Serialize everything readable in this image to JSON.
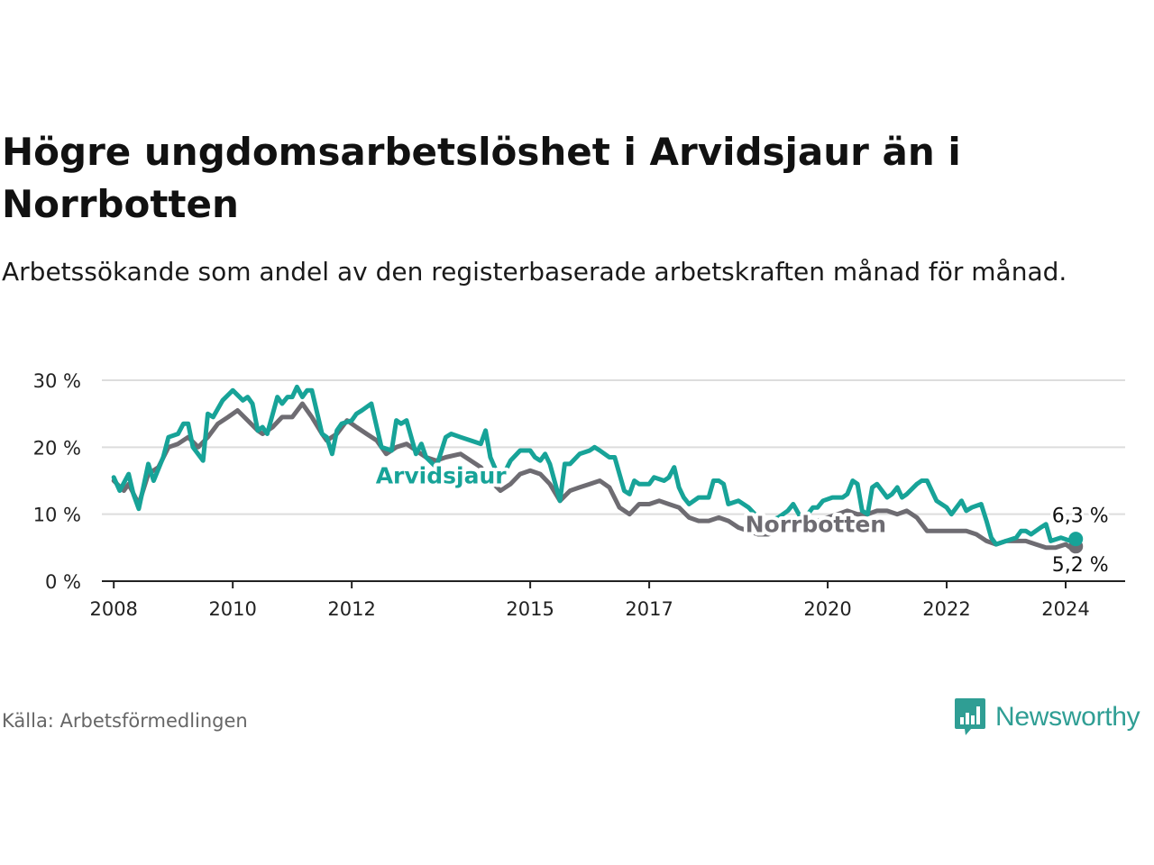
{
  "title": "Högre ungdomsarbetslöshet i Arvidsjaur än i Norrbotten",
  "subtitle": "Arbetssökande som andel av den registerbaserade arbetskraften månad för månad.",
  "source": "Källa: Arbetsförmedlingen",
  "brand": {
    "name": "Newsworthy",
    "icon": "newsworthy-logo-icon"
  },
  "colors": {
    "arvidsjaur": "#17a398",
    "norrbotten": "#6e6c72",
    "grid": "#dddddd",
    "axis": "#222222"
  },
  "chart_data": {
    "type": "line",
    "ylim": [
      0,
      30
    ],
    "xlim": [
      2007.8,
      2025.0
    ],
    "y_ticks": [
      0,
      10,
      20,
      30
    ],
    "y_tick_labels": [
      "0 %",
      "10 %",
      "20 %",
      "30 %"
    ],
    "x_ticks": [
      2008,
      2010,
      2012,
      2015,
      2017,
      2020,
      2022,
      2024
    ],
    "x_tick_labels": [
      "2008",
      "2010",
      "2012",
      "2015",
      "2017",
      "2020",
      "2022",
      "2024"
    ],
    "grid": true,
    "series": [
      {
        "name": "Arvidsjaur",
        "label": "Arvidsjaur",
        "color_key": "arvidsjaur",
        "end_label": "6,3 %",
        "points": [
          [
            2008.0,
            15.5
          ],
          [
            2008.1,
            13.5
          ],
          [
            2008.25,
            16.0
          ],
          [
            2008.33,
            13.0
          ],
          [
            2008.42,
            10.8
          ],
          [
            2008.58,
            17.5
          ],
          [
            2008.67,
            15.0
          ],
          [
            2008.83,
            18.5
          ],
          [
            2008.92,
            21.5
          ],
          [
            2009.08,
            22.0
          ],
          [
            2009.17,
            23.5
          ],
          [
            2009.25,
            23.5
          ],
          [
            2009.33,
            20.0
          ],
          [
            2009.5,
            18.0
          ],
          [
            2009.58,
            25.0
          ],
          [
            2009.67,
            24.5
          ],
          [
            2009.83,
            27.0
          ],
          [
            2010.0,
            28.5
          ],
          [
            2010.17,
            27.0
          ],
          [
            2010.25,
            27.5
          ],
          [
            2010.33,
            26.5
          ],
          [
            2010.42,
            22.5
          ],
          [
            2010.5,
            23.0
          ],
          [
            2010.58,
            22.0
          ],
          [
            2010.75,
            27.5
          ],
          [
            2010.83,
            26.5
          ],
          [
            2010.92,
            27.5
          ],
          [
            2011.0,
            27.5
          ],
          [
            2011.08,
            29.0
          ],
          [
            2011.17,
            27.5
          ],
          [
            2011.25,
            28.5
          ],
          [
            2011.33,
            28.5
          ],
          [
            2011.5,
            22.0
          ],
          [
            2011.58,
            21.5
          ],
          [
            2011.67,
            19.0
          ],
          [
            2011.75,
            22.5
          ],
          [
            2011.83,
            23.5
          ],
          [
            2012.0,
            24.0
          ],
          [
            2012.08,
            25.0
          ],
          [
            2012.17,
            25.5
          ],
          [
            2012.33,
            26.5
          ],
          [
            2012.42,
            23.0
          ],
          [
            2012.5,
            20.0
          ],
          [
            2012.67,
            19.5
          ],
          [
            2012.75,
            24.0
          ],
          [
            2012.83,
            23.5
          ],
          [
            2012.92,
            24.0
          ],
          [
            2013.08,
            19.0
          ],
          [
            2013.17,
            20.5
          ],
          [
            2013.25,
            18.5
          ],
          [
            2013.42,
            17.0
          ],
          [
            2013.58,
            21.5
          ],
          [
            2013.67,
            22.0
          ],
          [
            2013.83,
            21.5
          ],
          [
            2014.0,
            21.0
          ],
          [
            2014.17,
            20.5
          ],
          [
            2014.25,
            22.5
          ],
          [
            2014.33,
            18.5
          ],
          [
            2014.5,
            15.0
          ],
          [
            2014.67,
            18.0
          ],
          [
            2014.83,
            19.5
          ],
          [
            2015.0,
            19.5
          ],
          [
            2015.08,
            18.5
          ],
          [
            2015.17,
            18.0
          ],
          [
            2015.25,
            19.0
          ],
          [
            2015.33,
            17.5
          ],
          [
            2015.5,
            12.0
          ],
          [
            2015.58,
            17.5
          ],
          [
            2015.67,
            17.5
          ],
          [
            2015.83,
            19.0
          ],
          [
            2016.0,
            19.5
          ],
          [
            2016.08,
            20.0
          ],
          [
            2016.17,
            19.5
          ],
          [
            2016.33,
            18.5
          ],
          [
            2016.42,
            18.5
          ],
          [
            2016.5,
            16.0
          ],
          [
            2016.58,
            13.5
          ],
          [
            2016.67,
            13.0
          ],
          [
            2016.75,
            15.0
          ],
          [
            2016.83,
            14.5
          ],
          [
            2017.0,
            14.5
          ],
          [
            2017.08,
            15.5
          ],
          [
            2017.25,
            15.0
          ],
          [
            2017.33,
            15.5
          ],
          [
            2017.42,
            17.0
          ],
          [
            2017.5,
            14.0
          ],
          [
            2017.58,
            12.5
          ],
          [
            2017.67,
            11.5
          ],
          [
            2017.83,
            12.5
          ],
          [
            2018.0,
            12.5
          ],
          [
            2018.08,
            15.0
          ],
          [
            2018.17,
            15.0
          ],
          [
            2018.25,
            14.5
          ],
          [
            2018.33,
            11.5
          ],
          [
            2018.5,
            12.0
          ],
          [
            2018.67,
            11.0
          ],
          [
            2018.83,
            9.5
          ],
          [
            2019.0,
            9.0
          ],
          [
            2019.17,
            9.5
          ],
          [
            2019.33,
            10.5
          ],
          [
            2019.42,
            11.5
          ],
          [
            2019.58,
            9.0
          ],
          [
            2019.75,
            11.0
          ],
          [
            2019.83,
            11.0
          ],
          [
            2019.92,
            12.0
          ],
          [
            2020.08,
            12.5
          ],
          [
            2020.17,
            12.5
          ],
          [
            2020.25,
            12.5
          ],
          [
            2020.33,
            13.0
          ],
          [
            2020.42,
            15.0
          ],
          [
            2020.5,
            14.5
          ],
          [
            2020.58,
            10.5
          ],
          [
            2020.67,
            10.0
          ],
          [
            2020.75,
            14.0
          ],
          [
            2020.83,
            14.5
          ],
          [
            2021.0,
            12.5
          ],
          [
            2021.08,
            13.0
          ],
          [
            2021.17,
            14.0
          ],
          [
            2021.25,
            12.5
          ],
          [
            2021.33,
            13.0
          ],
          [
            2021.5,
            14.5
          ],
          [
            2021.58,
            15.0
          ],
          [
            2021.67,
            15.0
          ],
          [
            2021.83,
            12.0
          ],
          [
            2022.0,
            11.0
          ],
          [
            2022.08,
            10.0
          ],
          [
            2022.25,
            12.0
          ],
          [
            2022.33,
            10.5
          ],
          [
            2022.42,
            11.0
          ],
          [
            2022.58,
            11.5
          ],
          [
            2022.67,
            9.0
          ],
          [
            2022.75,
            6.5
          ],
          [
            2022.83,
            5.5
          ],
          [
            2023.0,
            6.0
          ],
          [
            2023.17,
            6.5
          ],
          [
            2023.25,
            7.5
          ],
          [
            2023.33,
            7.5
          ],
          [
            2023.42,
            7.0
          ],
          [
            2023.58,
            8.0
          ],
          [
            2023.67,
            8.5
          ],
          [
            2023.75,
            6.0
          ],
          [
            2023.92,
            6.5
          ],
          [
            2024.08,
            6.0
          ],
          [
            2024.17,
            6.3
          ]
        ]
      },
      {
        "name": "Norrbotten",
        "label": "Norrbotten",
        "color_key": "norrbotten",
        "end_label": "5,2 %",
        "points": [
          [
            2008.0,
            15.0
          ],
          [
            2008.17,
            13.5
          ],
          [
            2008.25,
            14.5
          ],
          [
            2008.42,
            11.5
          ],
          [
            2008.58,
            16.0
          ],
          [
            2008.75,
            17.0
          ],
          [
            2008.92,
            20.0
          ],
          [
            2009.08,
            20.5
          ],
          [
            2009.25,
            21.5
          ],
          [
            2009.42,
            20.0
          ],
          [
            2009.58,
            21.5
          ],
          [
            2009.75,
            23.5
          ],
          [
            2009.92,
            24.5
          ],
          [
            2010.08,
            25.5
          ],
          [
            2010.25,
            24.0
          ],
          [
            2010.42,
            22.5
          ],
          [
            2010.5,
            22.0
          ],
          [
            2010.67,
            23.0
          ],
          [
            2010.83,
            24.5
          ],
          [
            2011.0,
            24.5
          ],
          [
            2011.17,
            26.5
          ],
          [
            2011.33,
            24.5
          ],
          [
            2011.5,
            22.0
          ],
          [
            2011.58,
            21.0
          ],
          [
            2011.75,
            22.0
          ],
          [
            2011.92,
            24.0
          ],
          [
            2012.08,
            23.0
          ],
          [
            2012.25,
            22.0
          ],
          [
            2012.42,
            21.0
          ],
          [
            2012.58,
            19.0
          ],
          [
            2012.75,
            20.0
          ],
          [
            2012.92,
            20.5
          ],
          [
            2013.08,
            19.5
          ],
          [
            2013.25,
            18.5
          ],
          [
            2013.42,
            18.0
          ],
          [
            2013.58,
            18.5
          ],
          [
            2013.83,
            19.0
          ],
          [
            2014.0,
            18.0
          ],
          [
            2014.17,
            17.0
          ],
          [
            2014.33,
            15.0
          ],
          [
            2014.5,
            13.5
          ],
          [
            2014.67,
            14.5
          ],
          [
            2014.83,
            16.0
          ],
          [
            2015.0,
            16.5
          ],
          [
            2015.17,
            16.0
          ],
          [
            2015.33,
            14.5
          ],
          [
            2015.5,
            12.0
          ],
          [
            2015.67,
            13.5
          ],
          [
            2015.83,
            14.0
          ],
          [
            2016.0,
            14.5
          ],
          [
            2016.17,
            15.0
          ],
          [
            2016.33,
            14.0
          ],
          [
            2016.5,
            11.0
          ],
          [
            2016.67,
            10.0
          ],
          [
            2016.83,
            11.5
          ],
          [
            2017.0,
            11.5
          ],
          [
            2017.17,
            12.0
          ],
          [
            2017.33,
            11.5
          ],
          [
            2017.5,
            11.0
          ],
          [
            2017.67,
            9.5
          ],
          [
            2017.83,
            9.0
          ],
          [
            2018.0,
            9.0
          ],
          [
            2018.17,
            9.5
          ],
          [
            2018.33,
            9.0
          ],
          [
            2018.5,
            8.0
          ],
          [
            2018.67,
            7.5
          ],
          [
            2018.83,
            7.0
          ],
          [
            2019.0,
            7.0
          ],
          [
            2019.17,
            7.5
          ],
          [
            2019.33,
            8.0
          ],
          [
            2019.5,
            7.5
          ],
          [
            2019.67,
            8.5
          ],
          [
            2019.83,
            9.0
          ],
          [
            2020.0,
            9.5
          ],
          [
            2020.17,
            10.0
          ],
          [
            2020.33,
            10.5
          ],
          [
            2020.5,
            10.0
          ],
          [
            2020.67,
            10.0
          ],
          [
            2020.83,
            10.5
          ],
          [
            2021.0,
            10.5
          ],
          [
            2021.17,
            10.0
          ],
          [
            2021.33,
            10.5
          ],
          [
            2021.5,
            9.5
          ],
          [
            2021.67,
            7.5
          ],
          [
            2021.83,
            7.5
          ],
          [
            2022.0,
            7.5
          ],
          [
            2022.17,
            7.5
          ],
          [
            2022.33,
            7.5
          ],
          [
            2022.5,
            7.0
          ],
          [
            2022.67,
            6.0
          ],
          [
            2022.83,
            5.5
          ],
          [
            2023.0,
            6.0
          ],
          [
            2023.17,
            6.0
          ],
          [
            2023.33,
            6.0
          ],
          [
            2023.5,
            5.5
          ],
          [
            2023.67,
            5.0
          ],
          [
            2023.83,
            5.0
          ],
          [
            2024.0,
            5.5
          ],
          [
            2024.08,
            5.0
          ],
          [
            2024.17,
            5.2
          ]
        ]
      }
    ]
  }
}
